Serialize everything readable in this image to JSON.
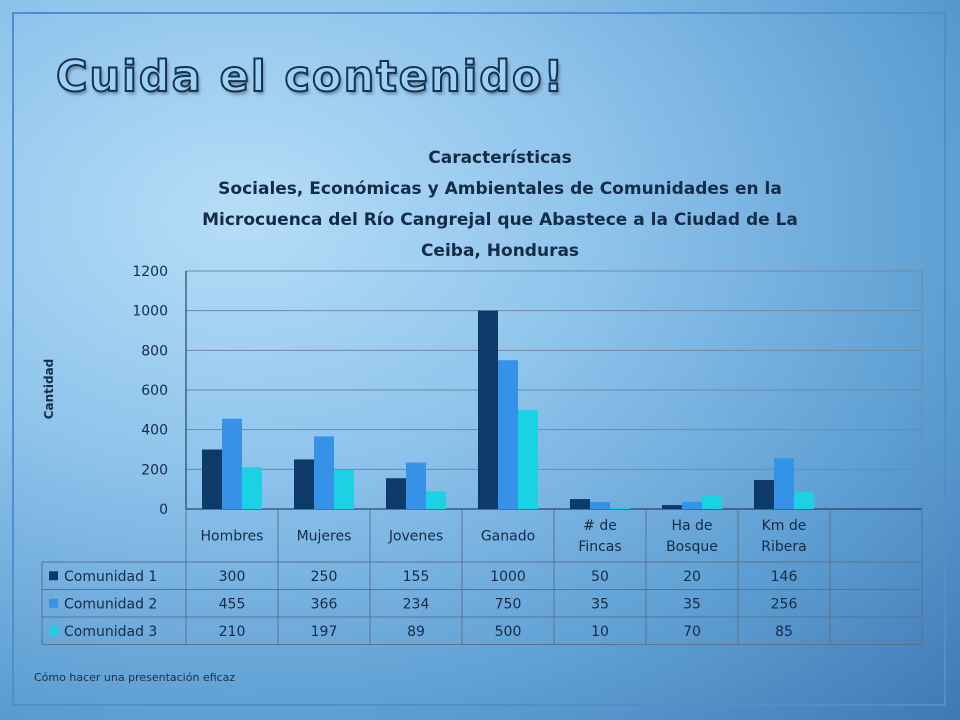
{
  "slide": {
    "title": "Cuida el contenido!",
    "footer": "Cómo hacer una presentación eficaz"
  },
  "colors": {
    "accent": "#4f8fd0",
    "text": "#142c48"
  },
  "chart_data": {
    "type": "bar",
    "title_lines": [
      "Características",
      "Sociales, Económicas y Ambientales de Comunidades en la",
      "Microcuenca del Río Cangrejal que Abastece a la Ciudad de La",
      "Ceiba, Honduras"
    ],
    "xlabel": "",
    "ylabel": "Cantidad",
    "ylim": [
      0,
      1200
    ],
    "yticks": [
      0,
      200,
      400,
      600,
      800,
      1000,
      1200
    ],
    "grid": true,
    "data_table": true,
    "categories": [
      [
        "Hombres"
      ],
      [
        "Mujeres"
      ],
      [
        "Jovenes"
      ],
      [
        "Ganado"
      ],
      [
        "# de",
        "Fincas"
      ],
      [
        "Ha de",
        "Bosque"
      ],
      [
        "Km de",
        "Ribera"
      ],
      [
        ""
      ]
    ],
    "series": [
      {
        "name": "Comunidad 1",
        "color": "#0e3a69",
        "values": [
          300,
          250,
          155,
          1000,
          50,
          20,
          146,
          null
        ]
      },
      {
        "name": "Comunidad 2",
        "color": "#3592e8",
        "values": [
          455,
          366,
          234,
          750,
          35,
          35,
          256,
          null
        ]
      },
      {
        "name": "Comunidad 3",
        "color": "#1ad2e4",
        "values": [
          210,
          197,
          89,
          500,
          10,
          70,
          85,
          null
        ]
      }
    ]
  }
}
